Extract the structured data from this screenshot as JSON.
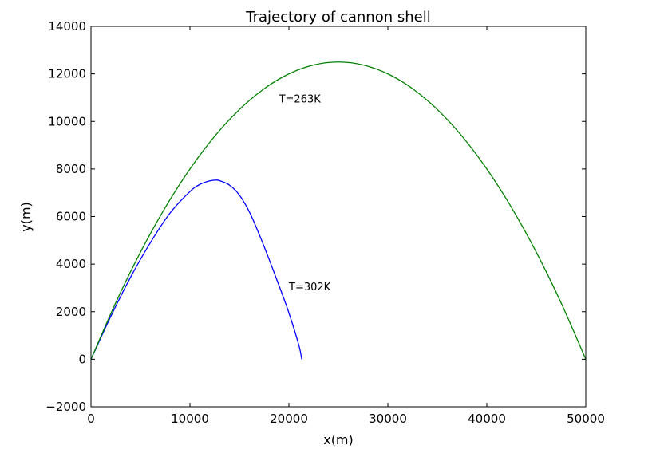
{
  "chart_data": {
    "type": "line",
    "title": "Trajectory of cannon shell",
    "xlabel": "x(m)",
    "ylabel": "y(m)",
    "xlim": [
      0,
      50000
    ],
    "ylim": [
      -2000,
      14000
    ],
    "xticks": [
      0,
      10000,
      20000,
      30000,
      40000,
      50000
    ],
    "yticks": [
      -2000,
      0,
      2000,
      4000,
      6000,
      8000,
      10000,
      12000,
      14000
    ],
    "xtick_labels": [
      "0",
      "10000",
      "20000",
      "30000",
      "40000",
      "50000"
    ],
    "ytick_labels": [
      "−2000",
      "0",
      "2000",
      "4000",
      "6000",
      "8000",
      "10000",
      "12000",
      "14000"
    ],
    "grid": false,
    "series": [
      {
        "color": "#0000ff",
        "x": [
          0,
          2000,
          4000,
          6000,
          8000,
          10000,
          11000,
          12000,
          12600,
          13000,
          14000,
          15000,
          16000,
          17000,
          18000,
          19000,
          20000,
          21000,
          21300
        ],
        "y": [
          0,
          1800,
          3450,
          4900,
          6150,
          7050,
          7350,
          7500,
          7530,
          7510,
          7320,
          6900,
          6200,
          5250,
          4200,
          3100,
          1950,
          600,
          0
        ]
      },
      {
        "color": "#008000",
        "x": [
          0,
          2500,
          5000,
          7500,
          10000,
          12500,
          15000,
          17500,
          20000,
          22500,
          25000,
          27500,
          30000,
          32500,
          35000,
          37500,
          40000,
          42500,
          45000,
          47500,
          50000
        ],
        "y": [
          0,
          2375,
          4500,
          6375,
          8000,
          9375,
          10500,
          11375,
          12000,
          12375,
          12500,
          12375,
          12000,
          11375,
          10500,
          9375,
          8000,
          6375,
          4500,
          2375,
          0
        ]
      }
    ],
    "annotations": [
      {
        "text": "T=263K",
        "x": 19000,
        "y": 10800
      },
      {
        "text": "T=302K",
        "x": 20000,
        "y": 2900
      }
    ]
  }
}
